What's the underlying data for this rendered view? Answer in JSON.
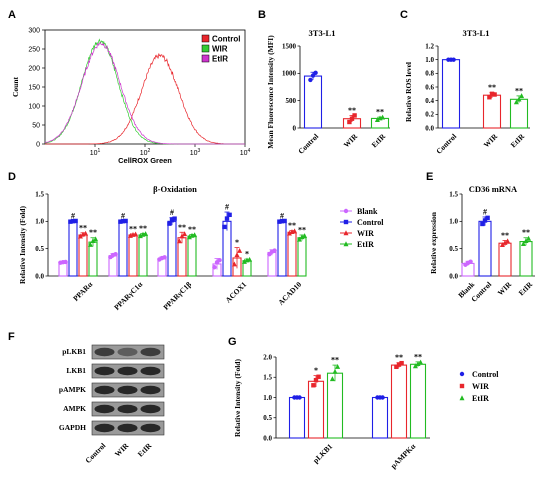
{
  "colors": {
    "control": "#e8262c",
    "wir": "#33cc33",
    "etir": "#cc33cc",
    "blank": "#cc66ff",
    "blue": "#1f1fe6",
    "red": "#e8262c",
    "green": "#22bb22"
  },
  "panel_letters": {
    "A": "A",
    "B": "B",
    "C": "C",
    "D": "D",
    "E": "E",
    "F": "F",
    "G": "G"
  },
  "sig": {
    "double": "**",
    "single": "*",
    "hash": "#"
  },
  "chart_data": [
    {
      "id": "A",
      "type": "line",
      "xlabel": "CellROX Green",
      "ylabel": "Count",
      "xscale": "log",
      "xlim": [
        1,
        10000
      ],
      "x_ticks": [
        "10",
        "10",
        "10",
        "10"
      ],
      "x_tick_exponents": [
        "1",
        "2",
        "3",
        "4"
      ],
      "y_ticks": [
        0,
        50,
        100,
        150,
        200,
        250,
        300
      ],
      "ylim": [
        0,
        300
      ],
      "legend": [
        "Control",
        "WIR",
        "EtIR"
      ],
      "series": [
        {
          "name": "Control",
          "log_peak": 2.3,
          "peak": 232,
          "width": 0.37
        },
        {
          "name": "WIR",
          "log_peak": 1.1,
          "peak": 272,
          "width": 0.36
        },
        {
          "name": "EtIR",
          "log_peak": 1.12,
          "peak": 265,
          "width": 0.38
        }
      ]
    },
    {
      "id": "B",
      "type": "bar",
      "title": "3T3-L1",
      "ylabel": "Mean Fluorescence Intensity (MFI)",
      "categories": [
        "Control",
        "WIR",
        "EtIR"
      ],
      "values": [
        950,
        170,
        175
      ],
      "errors": [
        70,
        60,
        25
      ],
      "points": [
        [
          880,
          960,
          1010
        ],
        [
          110,
          170,
          230
        ],
        [
          150,
          180,
          195
        ]
      ],
      "significance": [
        "",
        "**",
        "**"
      ],
      "ylim": [
        0,
        1500
      ],
      "y_ticks": [
        0,
        500,
        1000,
        1500
      ]
    },
    {
      "id": "C",
      "type": "bar",
      "title": "3T3-L1",
      "ylabel": "Relative ROS level",
      "categories": [
        "Control",
        "WIR",
        "EtIR"
      ],
      "values": [
        1.0,
        0.48,
        0.42
      ],
      "errors": [
        0.0,
        0.04,
        0.05
      ],
      "points": [
        [
          1.0,
          1.0,
          1.0
        ],
        [
          0.45,
          0.5,
          0.49
        ],
        [
          0.38,
          0.42,
          0.47
        ]
      ],
      "significance": [
        "",
        "**",
        "**"
      ],
      "ylim": [
        0,
        1.2
      ],
      "y_ticks": [
        "0.0",
        "0.2",
        "0.4",
        "0.6",
        "0.8",
        "1.0",
        "1.2"
      ]
    },
    {
      "id": "D",
      "type": "bar",
      "title": "β-Oxidation",
      "ylabel": "Relative Intensity (Fold)",
      "categories": [
        "PPARα",
        "PPARγC1α",
        "PPARγC1β",
        "ACOX1",
        "ACAD10"
      ],
      "legend": [
        "Blank",
        "Control",
        "WIR",
        "EtIR"
      ],
      "series": [
        {
          "name": "Blank",
          "values": [
            0.25,
            0.37,
            0.32,
            0.22,
            0.43
          ],
          "errors": [
            0.01,
            0.04,
            0.03,
            0.1,
            0.05
          ]
        },
        {
          "name": "Control",
          "values": [
            1.0,
            1.0,
            1.0,
            1.0,
            1.0
          ],
          "errors": [
            0.01,
            0.01,
            0.07,
            0.17,
            0.01
          ]
        },
        {
          "name": "WIR",
          "values": [
            0.75,
            0.75,
            0.7,
            0.33,
            0.8
          ],
          "errors": [
            0.04,
            0.02,
            0.1,
            0.19,
            0.03
          ]
        },
        {
          "name": "EtIR",
          "values": [
            0.62,
            0.75,
            0.73,
            0.28,
            0.7
          ],
          "errors": [
            0.08,
            0.03,
            0.03,
            0.03,
            0.05
          ]
        }
      ],
      "significance": {
        "Control": [
          "#",
          "#",
          "#",
          "#",
          "#"
        ],
        "WIR": [
          "**",
          "**",
          "**",
          "*",
          "**"
        ],
        "EtIR": [
          "**",
          "**",
          "**",
          "*",
          "**"
        ]
      },
      "ylim": [
        0,
        1.5
      ],
      "y_ticks": [
        "0.0",
        "0.5",
        "1.0",
        "1.5"
      ]
    },
    {
      "id": "E",
      "type": "bar",
      "title": "CD36 mRNA",
      "ylabel": "Relative expression",
      "categories": [
        "Blank",
        "Control",
        "WIR",
        "EtIR"
      ],
      "values": [
        0.23,
        1.0,
        0.6,
        0.63
      ],
      "errors": [
        0.04,
        0.08,
        0.05,
        0.07
      ],
      "significance": [
        "",
        "#",
        "**",
        "**"
      ],
      "ylim": [
        0,
        1.5
      ],
      "y_ticks": [
        "0.0",
        "0.5",
        "1.0",
        "1.5"
      ]
    },
    {
      "id": "G",
      "type": "bar",
      "ylabel": "Relative Intensity (Fold)",
      "categories": [
        "pLKB1",
        "pAMPKα"
      ],
      "legend": [
        "Control",
        "WIR",
        "EtIR"
      ],
      "series": [
        {
          "name": "Control",
          "values": [
            1.0,
            1.0
          ],
          "errors": [
            0.0,
            0.0
          ]
        },
        {
          "name": "WIR",
          "values": [
            1.4,
            1.8
          ],
          "errors": [
            0.14,
            0.06
          ]
        },
        {
          "name": "EtIR",
          "values": [
            1.6,
            1.82
          ],
          "errors": [
            0.2,
            0.06
          ]
        }
      ],
      "significance": {
        "WIR": [
          "*",
          "**"
        ],
        "EtIR": [
          "**",
          "**"
        ]
      },
      "ylim": [
        0,
        2.0
      ],
      "y_ticks": [
        "0.0",
        "0.5",
        "1.0",
        "1.5",
        "2.0"
      ]
    }
  ],
  "western_blot": {
    "rows": [
      "pLKB1",
      "LKB1",
      "pAMPK",
      "AMPK",
      "GAPDH"
    ],
    "lanes": [
      "Control",
      "WIR",
      "EtIR"
    ]
  }
}
